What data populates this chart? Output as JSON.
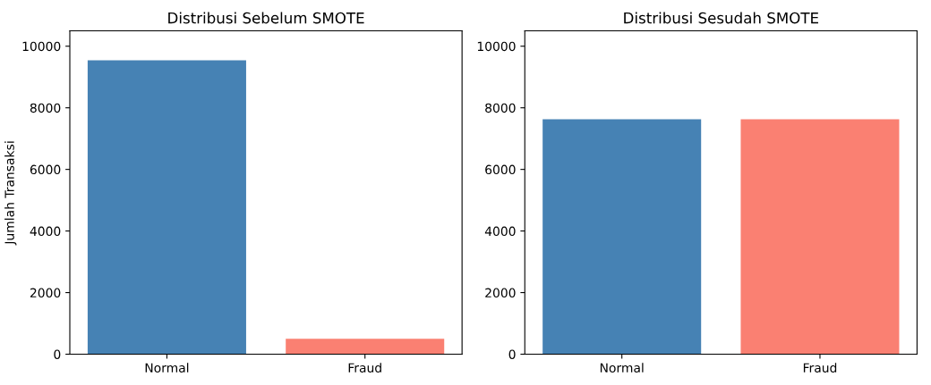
{
  "chart_data": [
    {
      "type": "bar",
      "title": "Distribusi Sebelum SMOTE",
      "ylabel": "Jumlah Transaksi",
      "categories": [
        "Normal",
        "Fraud"
      ],
      "values": [
        9540,
        500
      ],
      "colors": [
        "#4682b4",
        "#fa8072"
      ],
      "ylim": [
        0,
        10500
      ],
      "yticks": [
        0,
        2000,
        4000,
        6000,
        8000,
        10000
      ],
      "grid": false,
      "legend": false
    },
    {
      "type": "bar",
      "title": "Distribusi Sesudah SMOTE",
      "categories": [
        "Normal",
        "Fraud"
      ],
      "values": [
        7630,
        7630
      ],
      "colors": [
        "#4682b4",
        "#fa8072"
      ],
      "ylim": [
        0,
        10500
      ],
      "yticks": [
        0,
        2000,
        4000,
        6000,
        8000,
        10000
      ],
      "grid": false,
      "legend": false
    }
  ]
}
